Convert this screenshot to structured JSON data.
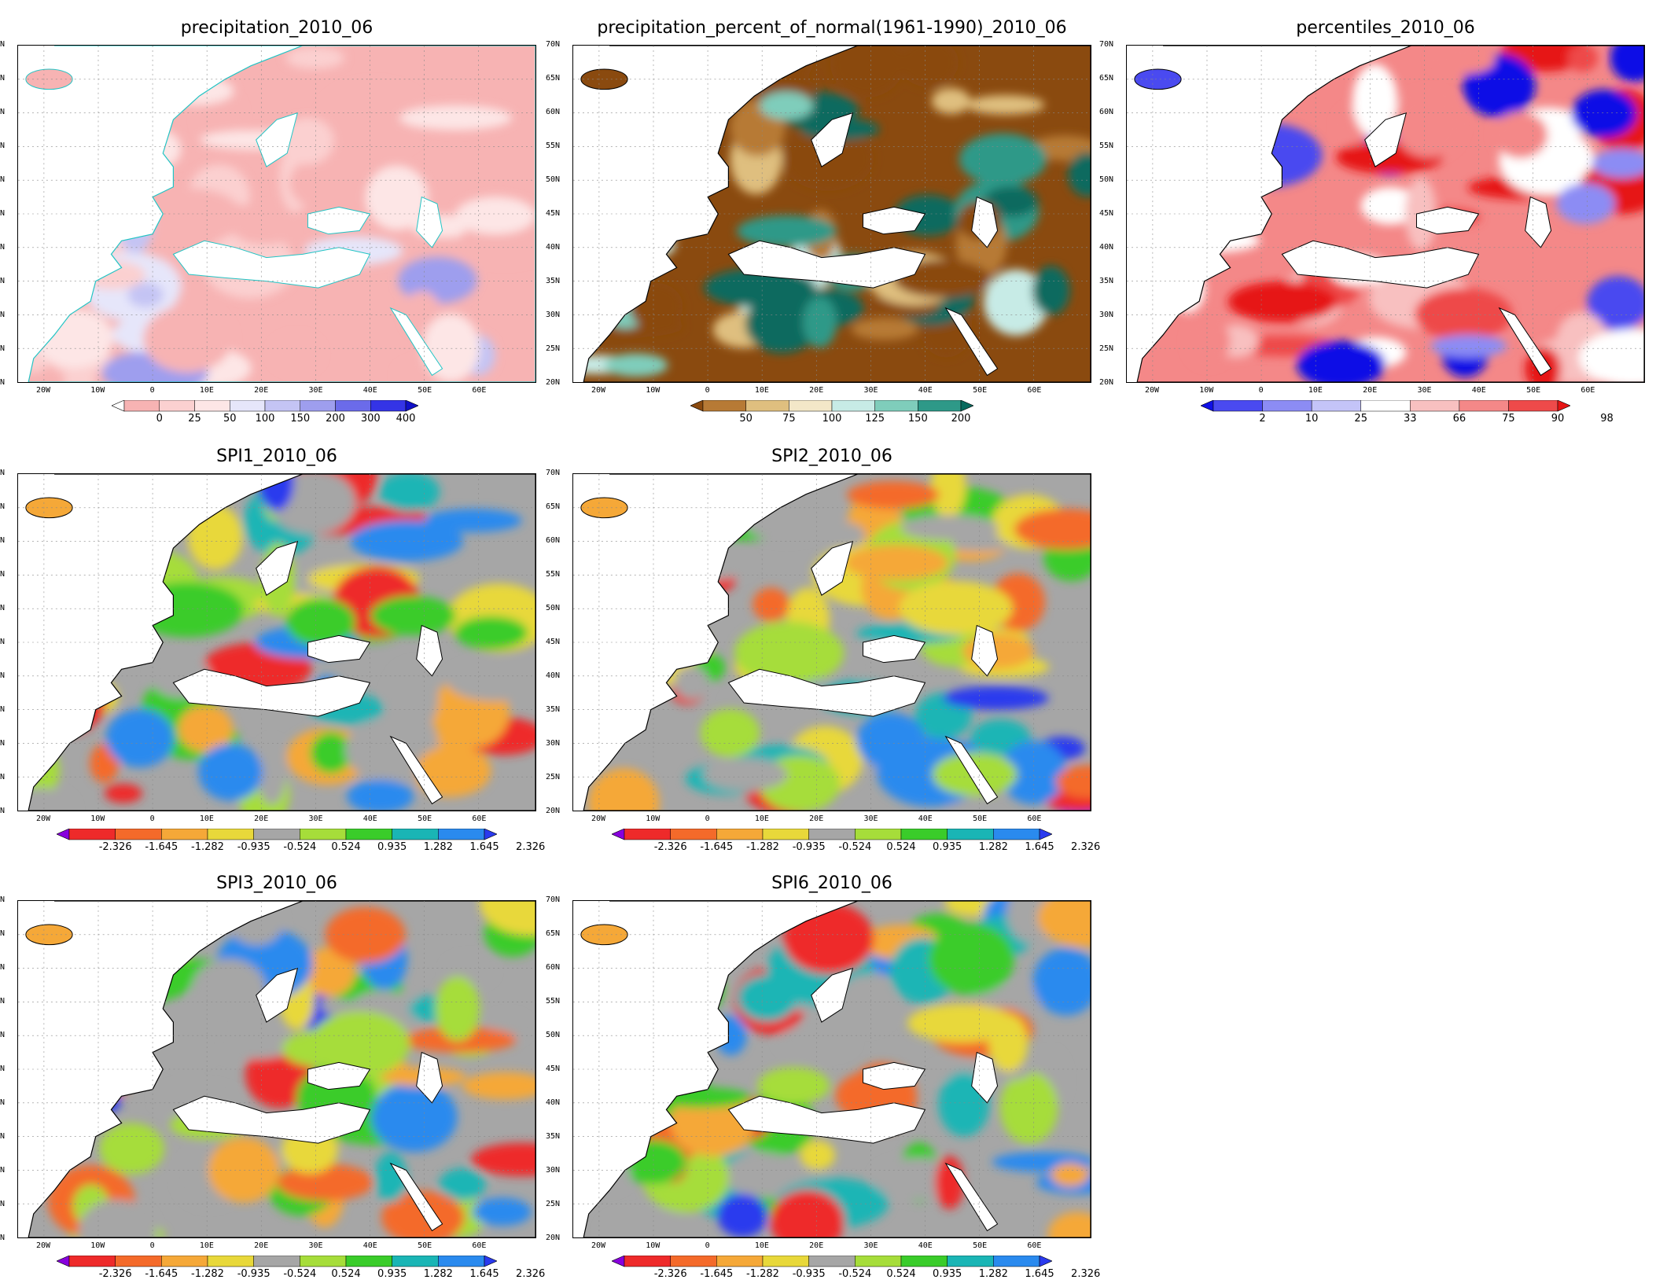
{
  "panels": [
    {
      "id": "p1",
      "title": "precipitation_2010_06",
      "scheme": "precip",
      "bar": "precip"
    },
    {
      "id": "p2",
      "title": "precipitation_percent_of_normal(1961-1990)_2010_06",
      "scheme": "pct",
      "bar": "pct"
    },
    {
      "id": "p3",
      "title": "percentiles_2010_06",
      "scheme": "perc",
      "bar": "perc"
    },
    {
      "id": "p4",
      "title": "SPI1_2010_06",
      "scheme": "spi",
      "bar": "spi"
    },
    {
      "id": "p5",
      "title": "SPI2_2010_06",
      "scheme": "spi",
      "bar": "spi"
    },
    {
      "id": "p6",
      "title": "SPI3_2010_06",
      "scheme": "spi",
      "bar": "spi"
    },
    {
      "id": "p7",
      "title": "SPI6_2010_06",
      "scheme": "spi",
      "bar": "spi"
    }
  ],
  "lat_labels": [
    "70N",
    "65N",
    "60N",
    "55N",
    "50N",
    "45N",
    "40N",
    "35N",
    "30N",
    "25N",
    "20N"
  ],
  "lon_labels": [
    "20W",
    "10W",
    "0",
    "10E",
    "20E",
    "30E",
    "40E",
    "50E",
    "60E"
  ],
  "colorbars": {
    "precip": {
      "labels": [
        "0",
        "25",
        "50",
        "100",
        "150",
        "200",
        "300",
        "400"
      ],
      "colors": [
        "#ffffff",
        "#f7b3b3",
        "#fbd0d0",
        "#fde6e6",
        "#e6e6fa",
        "#c4c4f4",
        "#9e9eee",
        "#6b6bea",
        "#3434e6",
        "#1010c8"
      ]
    },
    "pct": {
      "labels": [
        "50",
        "75",
        "100",
        "125",
        "150",
        "200"
      ],
      "colors": [
        "#8a4a0f",
        "#b77a35",
        "#dfbf7f",
        "#f3e7c8",
        "#c7ebe6",
        "#7fcdbb",
        "#2e9988",
        "#0a6a5e"
      ]
    },
    "perc": {
      "labels": [
        "2",
        "10",
        "25",
        "33",
        "66",
        "75",
        "90",
        "98"
      ],
      "colors": [
        "#1010e6",
        "#4a4af0",
        "#8c8cf4",
        "#c4c4f8",
        "#ffffff",
        "#f8c0c0",
        "#f48888",
        "#ee4a4a",
        "#e61414"
      ]
    },
    "spi": {
      "labels": [
        "-2.326",
        "-1.645",
        "-1.282",
        "-0.935",
        "-0.524",
        "0.524",
        "0.935",
        "1.282",
        "1.645",
        "2.326"
      ],
      "colors": [
        "#8800dd",
        "#ee2a2a",
        "#f46a2a",
        "#f5a838",
        "#e8d83a",
        "#a6a6a6",
        "#a6dd3a",
        "#3acc2a",
        "#1ab5b5",
        "#2a8aee",
        "#2a3aee"
      ]
    }
  },
  "color_scheme_notes": {
    "land_fill_none": "#ffffff",
    "coast_precip": "#22c4c4",
    "coast_other": "#000000"
  }
}
